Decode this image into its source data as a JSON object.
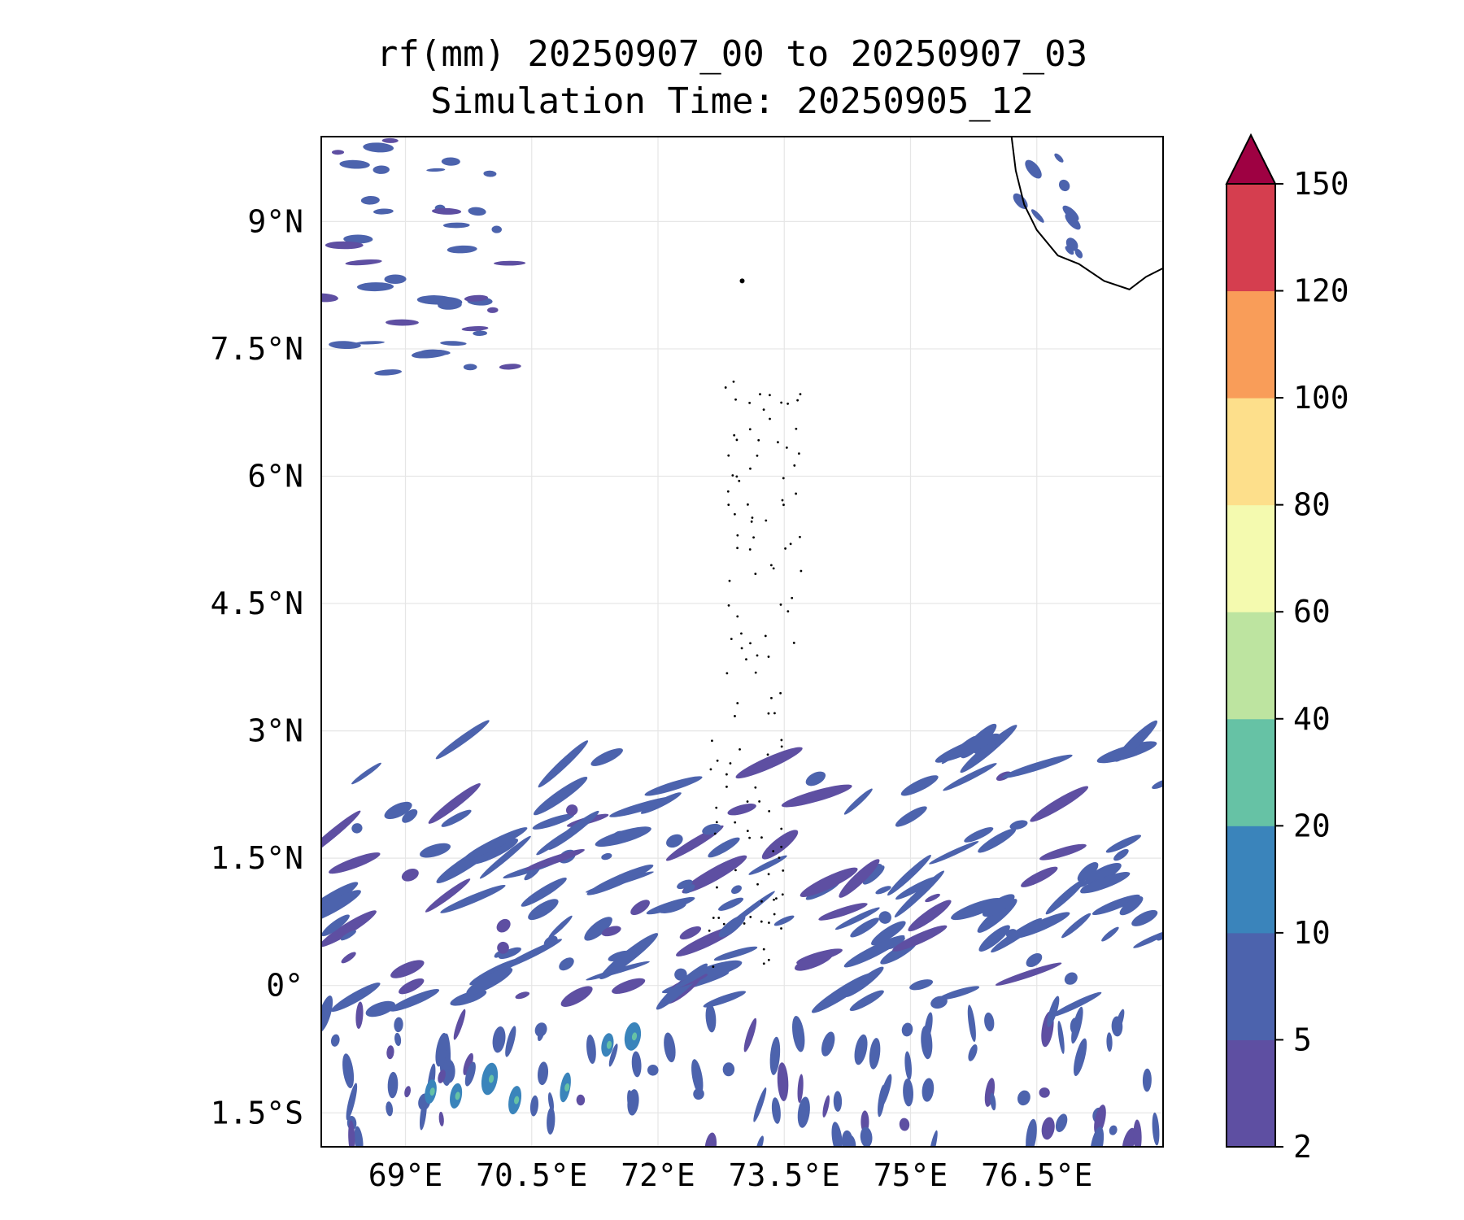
{
  "title": {
    "line1": "rf(mm) 20250907_00 to 20250907_03",
    "line2": "Simulation Time: 20250905_12"
  },
  "map": {
    "lon_range": [
      68.0,
      78.0
    ],
    "lat_range": [
      -1.9,
      10.0
    ],
    "gridlines": true,
    "lon_ticks": [
      69.0,
      70.5,
      72.0,
      73.5,
      75.0,
      76.5
    ],
    "lon_tick_labels": [
      "69°E",
      "70.5°E",
      "72°E",
      "73.5°E",
      "75°E",
      "76.5°E"
    ],
    "lat_ticks": [
      9.0,
      7.5,
      6.0,
      4.5,
      3.0,
      1.5,
      0.0,
      -1.5
    ],
    "lat_tick_labels": [
      "9°N",
      "7.5°N",
      "6°N",
      "4.5°N",
      "3°N",
      "1.5°N",
      "0°",
      "1.5°S"
    ],
    "coastline_color": "#000000"
  },
  "colorbar": {
    "levels": [
      2,
      5,
      10,
      20,
      40,
      60,
      80,
      100,
      120,
      150
    ],
    "labels": [
      "2",
      "5",
      "10",
      "20",
      "40",
      "60",
      "80",
      "100",
      "120",
      "150"
    ],
    "colors": [
      "#5e4fa2",
      "#4c63ad",
      "#3a84bb",
      "#66c2a5",
      "#bde4a0",
      "#f4faaf",
      "#fddf8b",
      "#f99d59",
      "#d53e4f",
      "#9e0142"
    ],
    "extend": "max",
    "placement": "right"
  }
}
